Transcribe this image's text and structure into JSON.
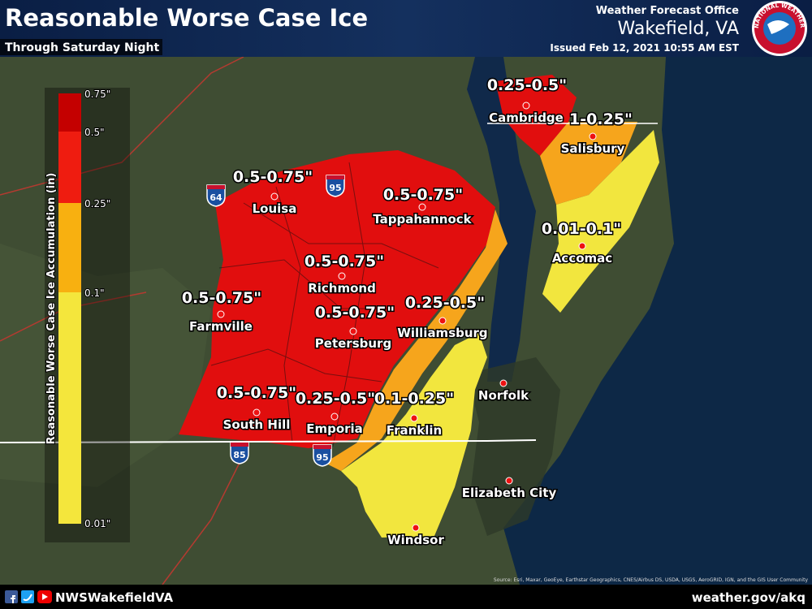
{
  "header": {
    "title": "Reasonable Worse Case Ice",
    "subtitle": "Through Saturday Night",
    "office": "Weather Forecast Office",
    "location": "Wakefield, VA",
    "issued": "Issued Feb 12, 2021 10:55 AM EST",
    "logo_text": "NATIONAL WEATHER SERVICE"
  },
  "legend": {
    "title": "Reasonable Worse Case Ice Accumulation (in)",
    "ticks": [
      "0.75\"",
      "0.5\"",
      "0.25\"",
      "0.1\"",
      "0.01\""
    ]
  },
  "cities": [
    "Louisa",
    "Tappahannock",
    "Richmond",
    "Petersburg",
    "Farmville",
    "Williamsburg",
    "South Hill",
    "Emporia",
    "Franklin",
    "Norfolk",
    "Elizabeth City",
    "Windsor",
    "Cambridge",
    "Salisbury",
    "Accomac"
  ],
  "amounts": [
    "0.5-0.75\"",
    "0.5-0.75\"",
    "0.5-0.75\"",
    "0.5-0.75\"",
    "0.5-0.75\"",
    "0.25-0.5\"",
    "0.5-0.75\"",
    "0.25-0.5\"",
    "0.1-0.25\"",
    "0.25-0.5\"",
    "1-0.25\"",
    "0.01-0.1\""
  ],
  "highways": [
    "64",
    "95",
    "85",
    "95"
  ],
  "credits": "Source: Esri, Maxar, GeoEye, Earthstar Geographics, CNES/Airbus DS, USDA, USGS, AeroGRID, IGN, and the GIS User Community",
  "footer": {
    "social": "NWSWakefieldVA",
    "website": "weather.gov/akq"
  }
}
